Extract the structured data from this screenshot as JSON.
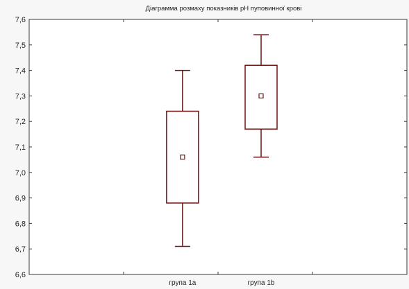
{
  "chart_data": {
    "type": "boxplot",
    "title": "Діаграмма розмаху показників pH пуповинної крові",
    "xlabel": "",
    "ylabel": "",
    "categories": [
      "група 1a",
      "група 1b"
    ],
    "boxes": [
      {
        "category": "група 1a",
        "whisker_low": 6.71,
        "q1": 6.88,
        "center": 7.06,
        "q3": 7.24,
        "whisker_high": 7.4
      },
      {
        "category": "група 1b",
        "whisker_low": 7.06,
        "q1": 7.17,
        "center": 7.3,
        "q3": 7.42,
        "whisker_high": 7.54
      }
    ],
    "ylim": [
      6.6,
      7.6
    ],
    "yticks": [
      "6,6",
      "6,7",
      "6,8",
      "6,9",
      "7,0",
      "7,1",
      "7,2",
      "7,3",
      "7,4",
      "7,5",
      "7,6"
    ],
    "grid": false,
    "legend": "none",
    "colors": {
      "box_stroke": "#6e1414",
      "axis": "#3a3a3a",
      "background": "#f7f7f7",
      "plot_background": "#ffffff"
    }
  }
}
